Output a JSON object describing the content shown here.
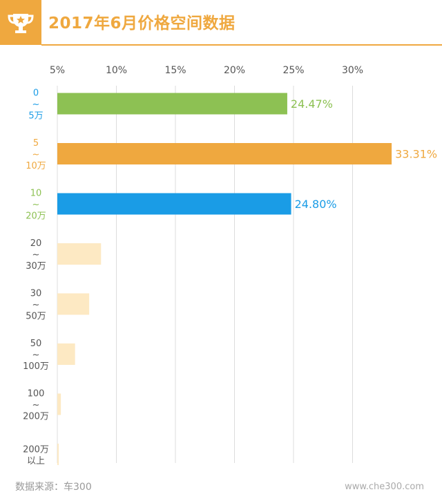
{
  "header": {
    "title": "2017年6月价格空间数据",
    "badge_color": "#efa83f",
    "icon": "trophy-icon"
  },
  "chart_data": {
    "type": "bar",
    "orientation": "horizontal",
    "categories": [
      [
        "0",
        "~",
        "5万"
      ],
      [
        "5",
        "~",
        "10万"
      ],
      [
        "10",
        "~",
        "20万"
      ],
      [
        "20",
        "~",
        "30万"
      ],
      [
        "30",
        "~",
        "50万"
      ],
      [
        "50",
        "~",
        "100万"
      ],
      [
        "100",
        "~",
        "200万"
      ],
      [
        "200万",
        "以上"
      ]
    ],
    "values": [
      24.47,
      33.31,
      24.8,
      8.7,
      7.7,
      6.5,
      5.3,
      5.1
    ],
    "value_labels": [
      "24.47%",
      "33.31%",
      "24.80%",
      "",
      "",
      "",
      "",
      ""
    ],
    "colors": [
      "#8dc153",
      "#efa83f",
      "#1a9ce6",
      "#fde9c3",
      "#fde9c3",
      "#fde9c3",
      "#fde9c3",
      "#fde9c3"
    ],
    "label_colors": [
      "#1a9ce6",
      "#efa83f",
      "#8dc153",
      "#555555",
      "#555555",
      "#555555",
      "#555555",
      "#555555"
    ],
    "xticks": [
      "5%",
      "10%",
      "15%",
      "20%",
      "25%",
      "30%"
    ],
    "xtick_values": [
      5,
      10,
      15,
      20,
      25,
      30
    ],
    "xlim": [
      5,
      34
    ],
    "grid": true,
    "title": "2017年6月价格空间数据"
  },
  "footer": {
    "source": "数据来源：车300",
    "url": "www.che300.com"
  }
}
